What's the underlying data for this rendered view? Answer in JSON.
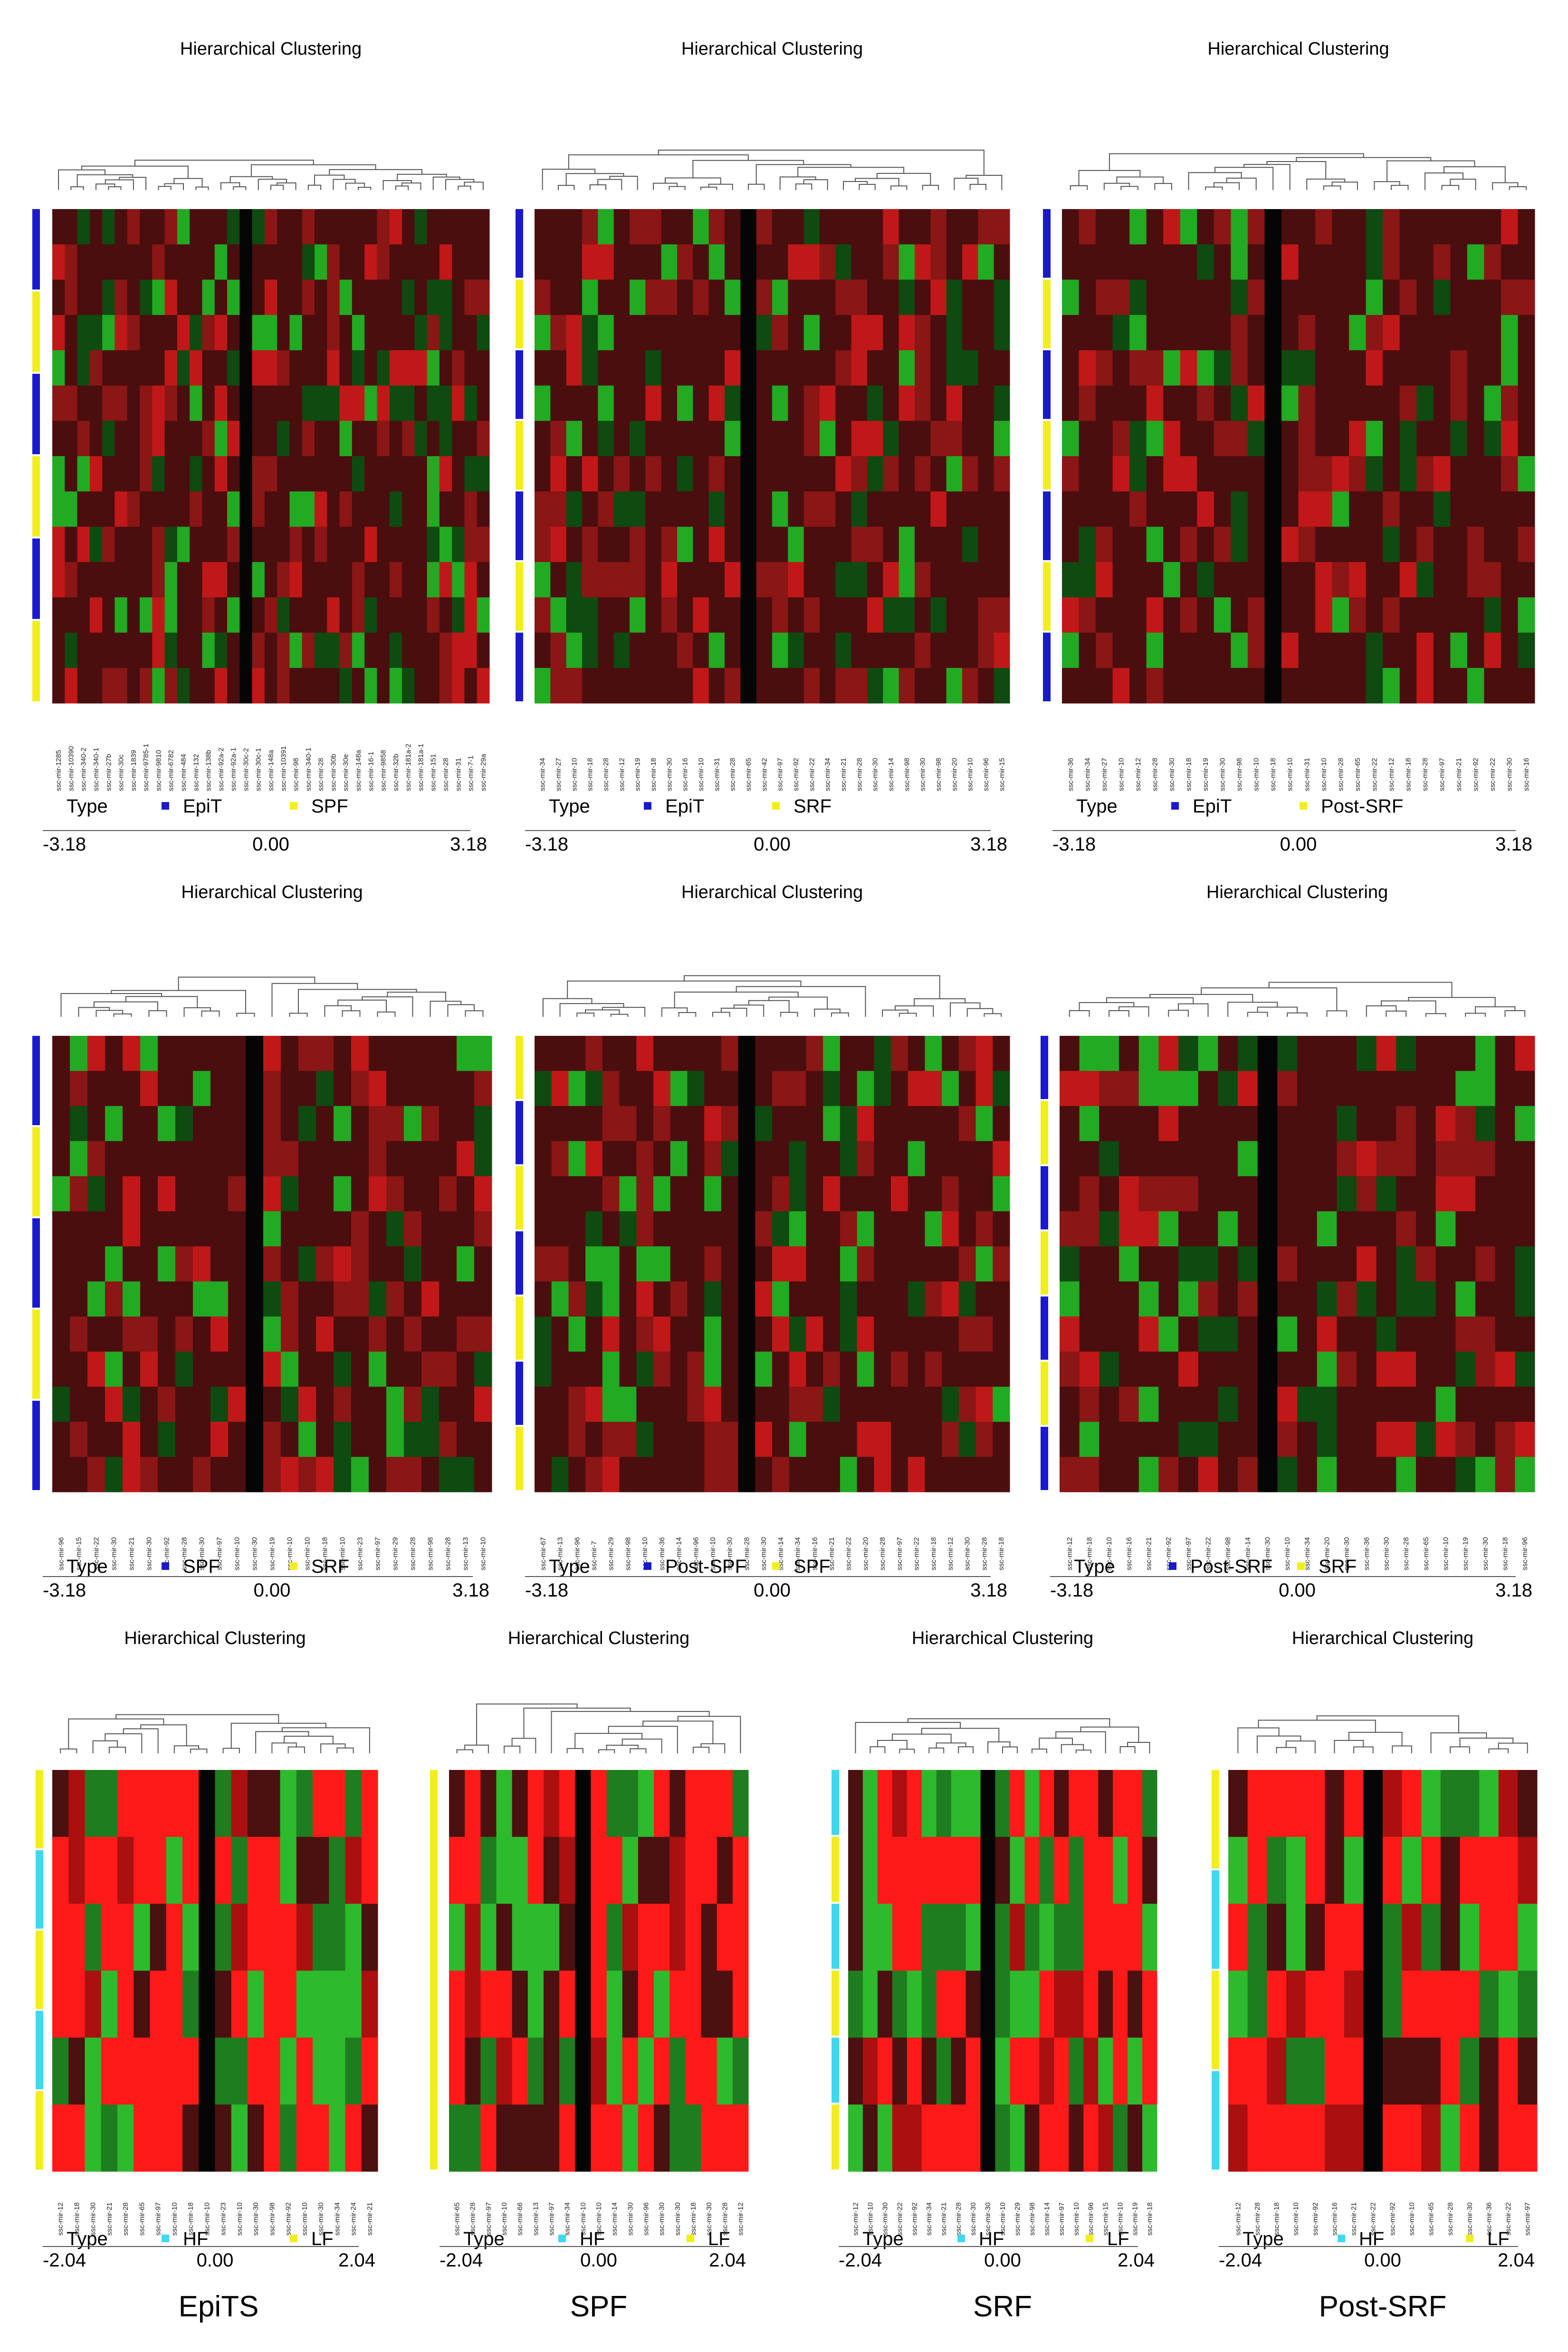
{
  "figure": {
    "bottom_labels": [
      "EpiTS",
      "SPF",
      "SRF",
      "Post-SRF"
    ]
  },
  "chart_data": [
    {
      "type": "heatmap",
      "title": "Hierarchical Clustering",
      "scale": {
        "min": "-3.18",
        "mid": "0.00",
        "max": "3.18"
      },
      "legend": [
        {
          "label": "EpiT",
          "color": "#1a1acc"
        },
        {
          "label": "SPF",
          "color": "#f2ee1e"
        }
      ],
      "type_label": "Type",
      "row_groups": [
        "EpiT",
        "SPF",
        "EpiT",
        "SPF",
        "EpiT",
        "SPF"
      ],
      "columns": [
        "ssc-mir-1285",
        "ssc-mir-10390",
        "ssc-mir-340-2",
        "ssc-mir-340-1",
        "ssc-mir-27b",
        "ssc-mir-30c",
        "ssc-mir-1839",
        "ssc-mir-9785-1",
        "ssc-mir-9810",
        "ssc-mir-6782",
        "ssc-mir-484",
        "ssc-mir-132",
        "ssc-mir-138b",
        "ssc-mir-92a-2",
        "ssc-mir-92a-1",
        "ssc-mir-30c-2",
        "ssc-mir-30c-1",
        "ssc-mir-148a",
        "ssc-mir-10391",
        "ssc-mir-98",
        "ssc-mir-340-1",
        "ssc-mir-28",
        "ssc-mir-30b",
        "ssc-mir-30e",
        "ssc-mir-148a",
        "ssc-mir-16-1",
        "ssc-mir-9858",
        "ssc-mir-32b",
        "ssc-mir-181a-2",
        "ssc-mir-181a-1",
        "ssc-mir-151",
        "ssc-mir-28",
        "ssc-mir-31",
        "ssc-mir-7-1",
        "ssc-mir-29a"
      ]
    },
    {
      "type": "heatmap",
      "title": "Hierarchical Clustering",
      "scale": {
        "min": "-3.18",
        "mid": "0.00",
        "max": "3.18"
      },
      "legend": [
        {
          "label": "EpiT",
          "color": "#1a1acc"
        },
        {
          "label": "SRF",
          "color": "#f2ee1e"
        }
      ],
      "type_label": "Type",
      "row_groups": [
        "EpiT",
        "SRF",
        "EpiT",
        "SRF",
        "EpiT",
        "SRF",
        "EpiT"
      ],
      "columns": [
        "ssc-mir-34",
        "ssc-mir-27",
        "ssc-mir-10",
        "ssc-mir-18",
        "ssc-mir-28",
        "ssc-mir-12",
        "ssc-mir-19",
        "ssc-mir-18",
        "ssc-mir-30",
        "ssc-mir-16",
        "ssc-mir-10",
        "ssc-mir-31",
        "ssc-mir-28",
        "ssc-mir-65",
        "ssc-mir-42",
        "ssc-mir-97",
        "ssc-mir-92",
        "ssc-mir-22",
        "ssc-mir-34",
        "ssc-mir-21",
        "ssc-mir-28",
        "ssc-mir-30",
        "ssc-mir-14",
        "ssc-mir-98",
        "ssc-mir-30",
        "ssc-mir-98",
        "ssc-mir-20",
        "ssc-mir-10",
        "ssc-mir-96",
        "ssc-mir-15"
      ]
    },
    {
      "type": "heatmap",
      "title": "Hierarchical Clustering",
      "scale": {
        "min": "-3.18",
        "mid": "0.00",
        "max": "3.18"
      },
      "legend": [
        {
          "label": "EpiT",
          "color": "#1a1acc"
        },
        {
          "label": "Post-SRF",
          "color": "#f2ee1e"
        }
      ],
      "type_label": "Type",
      "row_groups": [
        "EpiT",
        "Post-SRF",
        "EpiT",
        "Post-SRF",
        "EpiT",
        "Post-SRF",
        "EpiT"
      ],
      "columns": [
        "ssc-mir-36",
        "ssc-mir-34",
        "ssc-mir-27",
        "ssc-mir-10",
        "ssc-mir-12",
        "ssc-mir-28",
        "ssc-mir-30",
        "ssc-mir-18",
        "ssc-mir-19",
        "ssc-mir-30",
        "ssc-mir-98",
        "ssc-mir-10",
        "ssc-mir-18",
        "ssc-mir-10",
        "ssc-mir-31",
        "ssc-mir-10",
        "ssc-mir-28",
        "ssc-mir-65",
        "ssc-mir-22",
        "ssc-mir-12",
        "ssc-mir-18",
        "ssc-mir-28",
        "ssc-mir-97",
        "ssc-mir-21",
        "ssc-mir-92",
        "ssc-mir-22",
        "ssc-mir-30",
        "ssc-mir-16"
      ]
    },
    {
      "type": "heatmap",
      "title": "Hierarchical Clustering",
      "scale": {
        "min": "-3.18",
        "mid": "0.00",
        "max": "3.18"
      },
      "legend": [
        {
          "label": "SPF",
          "color": "#1a1acc"
        },
        {
          "label": "SRF",
          "color": "#f2ee1e"
        }
      ],
      "type_label": "Type",
      "row_groups": [
        "SPF",
        "SRF",
        "SPF",
        "SRF",
        "SPF"
      ],
      "columns": [
        "ssc-mir-96",
        "ssc-mir-15",
        "ssc-mir-22",
        "ssc-mir-30",
        "ssc-mir-21",
        "ssc-mir-30",
        "ssc-mir-92",
        "ssc-mir-28",
        "ssc-mir-30",
        "ssc-mir-97",
        "ssc-mir-10",
        "ssc-mir-30",
        "ssc-mir-19",
        "ssc-mir-10",
        "ssc-mir-10",
        "ssc-mir-18",
        "ssc-mir-10",
        "ssc-mir-23",
        "ssc-mir-97",
        "ssc-mir-29",
        "ssc-mir-28",
        "ssc-mir-98",
        "ssc-mir-28",
        "ssc-mir-13",
        "ssc-mir-10"
      ]
    },
    {
      "type": "heatmap",
      "title": "Hierarchical Clustering",
      "scale": {
        "min": "-3.18",
        "mid": "0.00",
        "max": "3.18"
      },
      "legend": [
        {
          "label": "Post-SPF",
          "color": "#1a1acc"
        },
        {
          "label": "SPF",
          "color": "#f2ee1e"
        }
      ],
      "type_label": "Type",
      "row_groups": [
        "SPF",
        "Post-SPF",
        "SPF",
        "Post-SPF",
        "SPF",
        "Post-SPF",
        "SPF"
      ],
      "columns": [
        "ssc-mir-67",
        "ssc-mir-13",
        "ssc-mir-96",
        "ssc-mir-7",
        "ssc-mir-29",
        "ssc-mir-98",
        "ssc-mir-10",
        "ssc-mir-36",
        "ssc-mir-14",
        "ssc-mir-96",
        "ssc-mir-10",
        "ssc-mir-30",
        "ssc-mir-28",
        "ssc-mir-30",
        "ssc-mir-14",
        "ssc-mir-34",
        "ssc-mir-16",
        "ssc-mir-21",
        "ssc-mir-22",
        "ssc-mir-20",
        "ssc-mir-28",
        "ssc-mir-97",
        "ssc-mir-22",
        "ssc-mir-18",
        "ssc-mir-12",
        "ssc-mir-30",
        "ssc-mir-28",
        "ssc-mir-18"
      ]
    },
    {
      "type": "heatmap",
      "title": "Hierarchical Clustering",
      "scale": {
        "min": "-3.18",
        "mid": "0.00",
        "max": "3.18"
      },
      "legend": [
        {
          "label": "Post-SRF",
          "color": "#1a1acc"
        },
        {
          "label": "SRF",
          "color": "#f2ee1e"
        }
      ],
      "type_label": "Type",
      "row_groups": [
        "Post-SRF",
        "SRF",
        "Post-SRF",
        "SRF",
        "Post-SRF",
        "SRF",
        "Post-SRF"
      ],
      "columns": [
        "ssc-mir-12",
        "ssc-mir-18",
        "ssc-mir-10",
        "ssc-mir-16",
        "ssc-mir-21",
        "ssc-mir-92",
        "ssc-mir-97",
        "ssc-mir-22",
        "ssc-mir-98",
        "ssc-mir-14",
        "ssc-mir-30",
        "ssc-mir-10",
        "ssc-mir-34",
        "ssc-mir-20",
        "ssc-mir-30",
        "ssc-mir-36",
        "ssc-mir-30",
        "ssc-mir-28",
        "ssc-mir-65",
        "ssc-mir-10",
        "ssc-mir-19",
        "ssc-mir-30",
        "ssc-mir-18",
        "ssc-mir-96"
      ]
    },
    {
      "type": "heatmap",
      "title": "Hierarchical Clustering",
      "scale": {
        "min": "-2.04",
        "mid": "0.00",
        "max": "2.04"
      },
      "legend": [
        {
          "label": "HF",
          "color": "#3cd9f0"
        },
        {
          "label": "LF",
          "color": "#f2ee1e"
        }
      ],
      "type_label": "Type",
      "row_groups": [
        "LF",
        "HF",
        "LF",
        "HF",
        "LF"
      ],
      "columns": [
        "ssc-mir-12",
        "ssc-mir-18",
        "ssc-mir-30",
        "ssc-mir-21",
        "ssc-mir-28",
        "ssc-mir-65",
        "ssc-mir-97",
        "ssc-mir-10",
        "ssc-mir-18",
        "ssc-mir-10",
        "ssc-mir-23",
        "ssc-mir-10",
        "ssc-mir-30",
        "ssc-mir-98",
        "ssc-mir-92",
        "ssc-mir-10",
        "ssc-mir-30",
        "ssc-mir-34",
        "ssc-mir-24",
        "ssc-mir-21"
      ]
    },
    {
      "type": "heatmap",
      "title": "Hierarchical Clustering",
      "scale": {
        "min": "-2.04",
        "mid": "0.00",
        "max": "2.04"
      },
      "legend": [
        {
          "label": "HF",
          "color": "#3cd9f0"
        },
        {
          "label": "LF",
          "color": "#f2ee1e"
        }
      ],
      "type_label": "Type",
      "row_groups": [
        "LF"
      ],
      "columns": [
        "ssc-mir-65",
        "ssc-mir-28",
        "ssc-mir-97",
        "ssc-mir-10",
        "ssc-mir-66",
        "ssc-mir-13",
        "ssc-mir-97",
        "ssc-mir-34",
        "ssc-mir-10",
        "ssc-mir-10",
        "ssc-mir-14",
        "ssc-mir-30",
        "ssc-mir-96",
        "ssc-mir-30",
        "ssc-mir-30",
        "ssc-mir-18",
        "ssc-mir-30",
        "ssc-mir-28",
        "ssc-mir-12"
      ]
    },
    {
      "type": "heatmap",
      "title": "Hierarchical Clustering",
      "scale": {
        "min": "-2.04",
        "mid": "0.00",
        "max": "2.04"
      },
      "legend": [
        {
          "label": "HF",
          "color": "#3cd9f0"
        },
        {
          "label": "LF",
          "color": "#f2ee1e"
        }
      ],
      "type_label": "Type",
      "row_groups": [
        "HF",
        "LF",
        "HF",
        "LF",
        "HF",
        "LF"
      ],
      "columns": [
        "ssc-mir-12",
        "ssc-mir-10",
        "ssc-mir-30",
        "ssc-mir-22",
        "ssc-mir-92",
        "ssc-mir-34",
        "ssc-mir-21",
        "ssc-mir-28",
        "ssc-mir-30",
        "ssc-mir-30",
        "ssc-mir-10",
        "ssc-mir-29",
        "ssc-mir-98",
        "ssc-mir-14",
        "ssc-mir-97",
        "ssc-mir-10",
        "ssc-mir-96",
        "ssc-mir-15",
        "ssc-mir-10",
        "ssc-mir-19",
        "ssc-mir-18"
      ]
    },
    {
      "type": "heatmap",
      "title": "Hierarchical Clustering",
      "scale": {
        "min": "-2.04",
        "mid": "0.00",
        "max": "2.04"
      },
      "legend": [
        {
          "label": "HF",
          "color": "#3cd9f0"
        },
        {
          "label": "LF",
          "color": "#f2ee1e"
        }
      ],
      "type_label": "Type",
      "row_groups": [
        "LF",
        "HF",
        "LF",
        "HF"
      ],
      "columns": [
        "ssc-mir-12",
        "ssc-mir-28",
        "ssc-mir-18",
        "ssc-mir-10",
        "ssc-mir-92",
        "ssc-mir-16",
        "ssc-mir-21",
        "ssc-mir-22",
        "ssc-mir-92",
        "ssc-mir-10",
        "ssc-mir-65",
        "ssc-mir-28",
        "ssc-mir-30",
        "ssc-mir-36",
        "ssc-mir-22",
        "ssc-mir-97"
      ]
    }
  ]
}
